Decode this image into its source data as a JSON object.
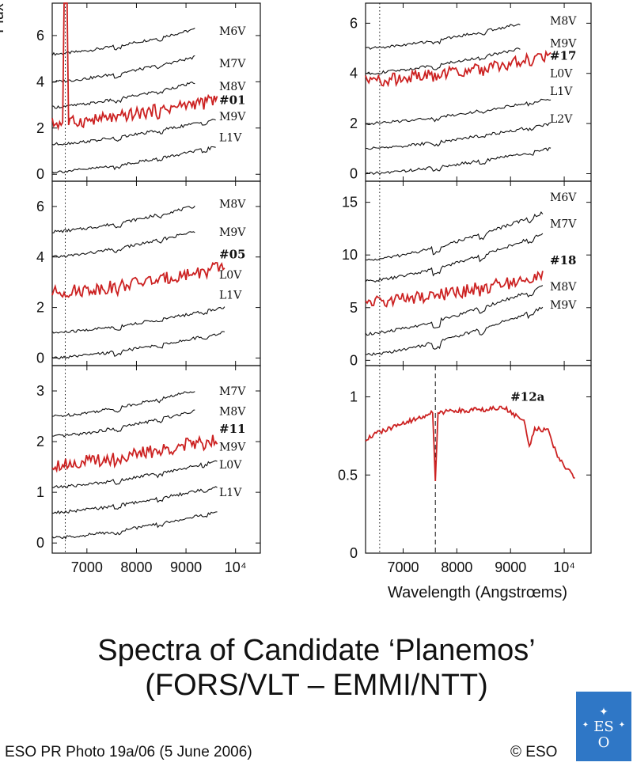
{
  "colors": {
    "ink": "#111111",
    "highlight": "#cc2222",
    "logo_bg": "#2f77c6"
  },
  "texts": {
    "xlabel": "Wavelength (Angstrœms)",
    "title_line1": "Spectra of Candidate ‘Planemos’",
    "title_line2": "(FORS/VLT – EMMI/NTT)",
    "caption": "ESO PR Photo 19a/06 (5 June 2006)",
    "copyright": "© ESO",
    "logo_text": "ESO"
  },
  "chart_data": [
    {
      "type": "line",
      "ylabel": "Flux",
      "xlim": [
        6300,
        10500
      ],
      "xticks": [
        "7000",
        "8000",
        "9000",
        "10⁴"
      ],
      "xtick_values": [
        7000,
        8000,
        9000,
        10000
      ],
      "ylim": [
        -0.3,
        7.4
      ],
      "yticks": [
        0,
        2,
        4,
        6
      ],
      "show_xticklabels": false,
      "dotted_line_x": 6563,
      "series": [
        {
          "name": "M6V",
          "offset": 5.2,
          "color": "ink",
          "x_end": 9200,
          "label_at": 6.2
        },
        {
          "name": "M7V",
          "offset": 4.0,
          "color": "ink",
          "x_end": 9200,
          "label_at": 4.8
        },
        {
          "name": "M8V",
          "offset": 2.9,
          "color": "ink",
          "x_end": 9200,
          "label_at": 3.8
        },
        {
          "name": "#01",
          "offset": 2.2,
          "color": "highlight",
          "x_end": 9650,
          "label_at": 3.2,
          "object": true,
          "emission": {
            "x": 6563,
            "peak": 7.4
          }
        },
        {
          "name": "M9V",
          "offset": 1.3,
          "color": "ink",
          "x_end": 9600,
          "label_at": 2.5
        },
        {
          "name": "L1V",
          "offset": 0.1,
          "color": "ink",
          "x_end": 9600,
          "label_at": 1.6
        }
      ]
    },
    {
      "type": "line",
      "xlim": [
        6300,
        10500
      ],
      "xticks": [
        "7000",
        "8000",
        "9000",
        "10⁴"
      ],
      "xtick_values": [
        7000,
        8000,
        9000,
        10000
      ],
      "ylim": [
        -0.3,
        7.0
      ],
      "yticks": [
        0,
        2,
        4,
        6
      ],
      "show_xticklabels": false,
      "dotted_line_x": 6563,
      "series": [
        {
          "name": "M8V",
          "offset": 5.0,
          "color": "ink",
          "x_end": 9200,
          "label_at": 6.1
        },
        {
          "name": "M9V",
          "offset": 4.0,
          "color": "ink",
          "x_end": 9200,
          "label_at": 5.0
        },
        {
          "name": "#05",
          "offset": 2.6,
          "color": "highlight",
          "x_end": 9800,
          "label_at": 4.1,
          "object": true
        },
        {
          "name": "L0V",
          "offset": 1.0,
          "color": "ink",
          "x_end": 9800,
          "label_at": 3.3
        },
        {
          "name": "L1V",
          "offset": 0.0,
          "color": "ink",
          "x_end": 9800,
          "label_at": 2.5
        }
      ]
    },
    {
      "type": "line",
      "xlim": [
        6300,
        10500
      ],
      "xticks": [
        "7000",
        "8000",
        "9000",
        "10⁴"
      ],
      "xtick_values": [
        7000,
        8000,
        9000,
        10000
      ],
      "ylim": [
        -0.2,
        3.5
      ],
      "yticks": [
        0,
        1,
        2,
        3
      ],
      "show_xticklabels": true,
      "dotted_line_x": 6563,
      "series": [
        {
          "name": "M7V",
          "offset": 2.5,
          "color": "ink",
          "x_end": 9200,
          "label_at": 3.0
        },
        {
          "name": "M8V",
          "offset": 2.1,
          "color": "ink",
          "x_end": 9200,
          "label_at": 2.6
        },
        {
          "name": "#11",
          "offset": 1.55,
          "color": "highlight",
          "x_end": 9650,
          "label_at": 2.25,
          "object": true
        },
        {
          "name": "M9V",
          "offset": 1.1,
          "color": "ink",
          "x_end": 9650,
          "label_at": 1.9
        },
        {
          "name": "L0V",
          "offset": 0.6,
          "color": "ink",
          "x_end": 9650,
          "label_at": 1.55
        },
        {
          "name": "L1V",
          "offset": 0.1,
          "color": "ink",
          "x_end": 9650,
          "label_at": 1.0
        }
      ]
    },
    {
      "type": "line",
      "xlim": [
        6300,
        10500
      ],
      "xticks": [
        "7000",
        "8000",
        "9000",
        "10⁴"
      ],
      "xtick_values": [
        7000,
        8000,
        9000,
        10000
      ],
      "ylim": [
        -0.3,
        6.8
      ],
      "yticks": [
        0,
        2,
        4,
        6
      ],
      "show_xticklabels": false,
      "dotted_line_x": 6563,
      "series": [
        {
          "name": "M8V",
          "offset": 5.0,
          "color": "ink",
          "x_end": 9200,
          "label_at": 6.1
        },
        {
          "name": "M9V",
          "offset": 4.0,
          "color": "ink",
          "x_end": 9200,
          "label_at": 5.2
        },
        {
          "name": "#17",
          "offset": 3.7,
          "color": "highlight",
          "x_end": 9750,
          "label_at": 4.7,
          "object": true
        },
        {
          "name": "L0V",
          "offset": 2.0,
          "color": "ink",
          "x_end": 9750,
          "label_at": 4.0
        },
        {
          "name": "L1V",
          "offset": 1.0,
          "color": "ink",
          "x_end": 9750,
          "label_at": 3.3
        },
        {
          "name": "L2V",
          "offset": 0.0,
          "color": "ink",
          "x_end": 9750,
          "label_at": 2.2
        }
      ]
    },
    {
      "type": "line",
      "xlim": [
        6300,
        10500
      ],
      "xticks": [
        "7000",
        "8000",
        "9000",
        "10⁴"
      ],
      "xtick_values": [
        7000,
        8000,
        9000,
        10000
      ],
      "ylim": [
        -0.5,
        17.0
      ],
      "yticks": [
        0,
        5,
        10,
        15
      ],
      "show_xticklabels": false,
      "dotted_line_x": 6563,
      "series": [
        {
          "name": "M6V",
          "offset": 9.5,
          "color": "ink",
          "x_end": 9600,
          "label_at": 15.5,
          "amp": 4.5
        },
        {
          "name": "M7V",
          "offset": 7.5,
          "color": "ink",
          "x_end": 9600,
          "label_at": 13.0,
          "amp": 4.5
        },
        {
          "name": "#18",
          "offset": 5.5,
          "color": "highlight",
          "x_end": 9600,
          "label_at": 9.5,
          "object": true,
          "amp": 2.5
        },
        {
          "name": "M8V",
          "offset": 2.5,
          "color": "ink",
          "x_end": 9600,
          "label_at": 7.0,
          "amp": 4.5
        },
        {
          "name": "M9V",
          "offset": 0.5,
          "color": "ink",
          "x_end": 9600,
          "label_at": 5.3,
          "amp": 4.5
        }
      ]
    },
    {
      "type": "line",
      "xlim": [
        6300,
        10500
      ],
      "xticks": [
        "7000",
        "8000",
        "9000",
        "10⁴"
      ],
      "xtick_values": [
        7000,
        8000,
        9000,
        10000
      ],
      "ylim": [
        0,
        1.2
      ],
      "yticks": [
        0,
        0.5,
        1
      ],
      "show_xticklabels": true,
      "dotted_line_x": 6563,
      "dashed_line_x": 7600,
      "series": [
        {
          "name": "#12a",
          "color": "highlight",
          "object": true,
          "label_at": 1.0,
          "points": [
            [
              6300,
              0.73
            ],
            [
              6600,
              0.78
            ],
            [
              7000,
              0.83
            ],
            [
              7400,
              0.88
            ],
            [
              7550,
              0.9
            ],
            [
              7600,
              0.45
            ],
            [
              7650,
              0.9
            ],
            [
              8000,
              0.91
            ],
            [
              8500,
              0.92
            ],
            [
              8900,
              0.93
            ],
            [
              9100,
              0.88
            ],
            [
              9250,
              0.85
            ],
            [
              9350,
              0.68
            ],
            [
              9450,
              0.8
            ],
            [
              9700,
              0.78
            ],
            [
              9900,
              0.6
            ],
            [
              10100,
              0.52
            ],
            [
              10200,
              0.48
            ]
          ]
        }
      ]
    }
  ]
}
